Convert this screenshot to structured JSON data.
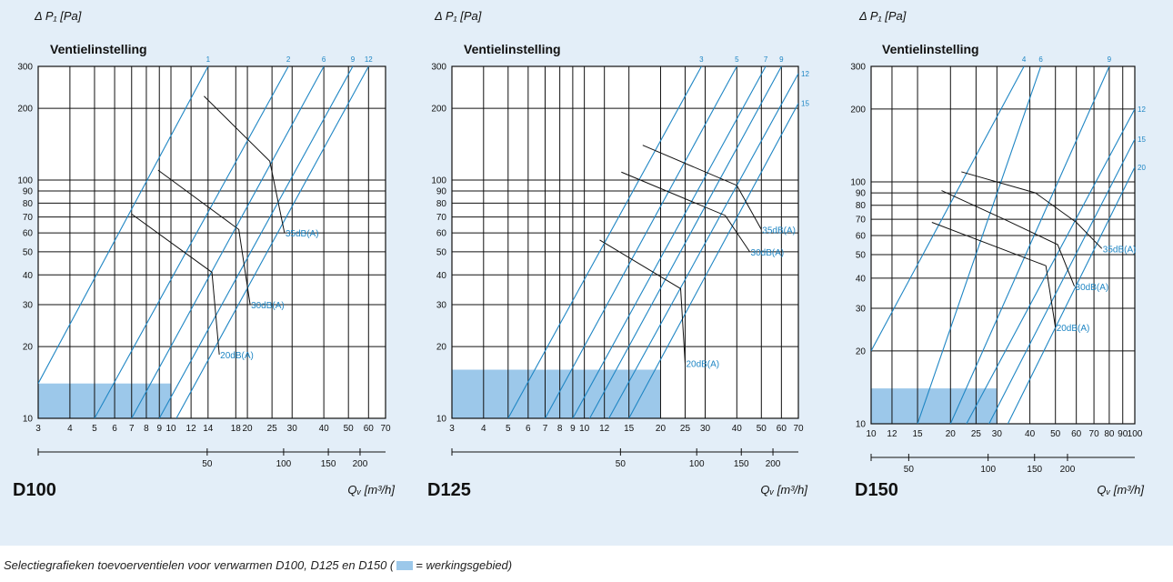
{
  "caption": {
    "text_before": "Selectiegrafieken toevoerventielen voor verwarmen D100, D125 en D150 (",
    "text_after": "= werkingsgebied)"
  },
  "colors": {
    "panel_background": "#e3eef8",
    "grid": "#111111",
    "setting_lines": "#1f86c4",
    "operating_area": "#9cc8ea",
    "noise_lines": "#111111",
    "noise_labels": "#1f86c4"
  },
  "chart_data": [
    {
      "type": "line",
      "title": "D100",
      "subtitle": "Ventielinstelling",
      "ylabel": "Δ P₁ [Pa]",
      "xlabel": "Qᵥ [m³/h]",
      "x_scale": "log",
      "y_scale": "log",
      "xlim": [
        3,
        70
      ],
      "ylim": [
        10,
        300
      ],
      "x_ticks": [
        3,
        4,
        5,
        6,
        7,
        8,
        9,
        10,
        12,
        14,
        18,
        20,
        25,
        30,
        40,
        50,
        60,
        70
      ],
      "y_ticks": [
        10,
        20,
        30,
        40,
        50,
        60,
        70,
        80,
        90,
        100,
        200,
        300
      ],
      "secondary_ticks": [
        50,
        100,
        150,
        200
      ],
      "operating_area": {
        "x": [
          3,
          10
        ],
        "y": [
          10,
          14
        ]
      },
      "setting_lines": [
        {
          "name": "1",
          "points": [
            [
              3,
              14
            ],
            [
              14,
              300
            ]
          ]
        },
        {
          "name": "2",
          "points": [
            [
              5,
              10
            ],
            [
              29,
              300
            ]
          ]
        },
        {
          "name": "6",
          "points": [
            [
              7,
              10
            ],
            [
              40,
              300
            ]
          ]
        },
        {
          "name": "9",
          "points": [
            [
              9,
              10
            ],
            [
              52,
              300
            ]
          ]
        },
        {
          "name": "12",
          "points": [
            [
              10.5,
              10
            ],
            [
              60,
              300
            ]
          ]
        }
      ],
      "noise_lines": [
        {
          "name": "35dB(A)",
          "points": [
            [
              13.5,
              225
            ],
            [
              24.5,
              120
            ],
            [
              28,
              60
            ]
          ]
        },
        {
          "name": "30dB(A)",
          "points": [
            [
              8.9,
              110
            ],
            [
              18.5,
              62
            ],
            [
              20.5,
              30
            ]
          ]
        },
        {
          "name": "20dB(A)",
          "points": [
            [
              7,
              72
            ],
            [
              14.5,
              41
            ],
            [
              15.5,
              18.5
            ]
          ]
        }
      ]
    },
    {
      "type": "line",
      "title": "D125",
      "subtitle": "Ventielinstelling",
      "ylabel": "Δ P₁ [Pa]",
      "xlabel": "Qᵥ [m³/h]",
      "x_scale": "log",
      "y_scale": "log",
      "xlim": [
        3,
        70
      ],
      "ylim": [
        10,
        300
      ],
      "x_ticks": [
        3,
        4,
        5,
        6,
        7,
        8,
        9,
        10,
        12,
        15,
        20,
        25,
        30,
        40,
        50,
        60,
        70
      ],
      "y_ticks": [
        10,
        20,
        30,
        40,
        50,
        60,
        70,
        80,
        90,
        100,
        200,
        300
      ],
      "secondary_ticks": [
        50,
        100,
        150,
        200
      ],
      "operating_area": {
        "x": [
          3,
          20
        ],
        "y": [
          10,
          16
        ]
      },
      "setting_lines": [
        {
          "name": "3",
          "points": [
            [
              5,
              10
            ],
            [
              29,
              300
            ]
          ]
        },
        {
          "name": "5",
          "points": [
            [
              7,
              10
            ],
            [
              40,
              300
            ]
          ]
        },
        {
          "name": "7",
          "points": [
            [
              9,
              10
            ],
            [
              52,
              300
            ]
          ]
        },
        {
          "name": "9",
          "points": [
            [
              10.5,
              10
            ],
            [
              60,
              300
            ]
          ]
        },
        {
          "name": "12",
          "points": [
            [
              12.5,
              10
            ],
            [
              70,
              280
            ]
          ]
        },
        {
          "name": "15",
          "points": [
            [
              15,
              10
            ],
            [
              70,
              210
            ]
          ]
        }
      ],
      "noise_lines": [
        {
          "name": "35dB(A)",
          "points": [
            [
              17,
              140
            ],
            [
              40,
              95
            ],
            [
              50,
              62
            ]
          ]
        },
        {
          "name": "30dB(A)",
          "points": [
            [
              14,
              108
            ],
            [
              36,
              71
            ],
            [
              45,
              50
            ]
          ]
        },
        {
          "name": "20dB(A)",
          "points": [
            [
              11.5,
              56
            ],
            [
              24,
              35
            ],
            [
              25,
              17
            ]
          ]
        }
      ]
    },
    {
      "type": "line",
      "title": "D150",
      "subtitle": "Ventielinstelling",
      "ylabel": "Δ P₁ [Pa]",
      "xlabel": "Qᵥ [m³/h]",
      "x_scale": "log",
      "y_scale": "log",
      "xlim": [
        10,
        100
      ],
      "ylim": [
        10,
        300
      ],
      "x_ticks": [
        10,
        12,
        15,
        20,
        25,
        30,
        40,
        50,
        60,
        70,
        80,
        90,
        100
      ],
      "y_ticks": [
        10,
        20,
        30,
        40,
        50,
        60,
        70,
        80,
        90,
        100,
        200,
        300
      ],
      "secondary_ticks": [
        50,
        100,
        150,
        200
      ],
      "operating_area": {
        "x": [
          10,
          30
        ],
        "y": [
          10,
          14
        ]
      },
      "setting_lines": [
        {
          "name": "4",
          "points": [
            [
              10,
              20
            ],
            [
              38,
              300
            ]
          ]
        },
        {
          "name": "6",
          "points": [
            [
              15,
              10
            ],
            [
              44,
              300
            ]
          ]
        },
        {
          "name": "9",
          "points": [
            [
              20,
              10
            ],
            [
              80,
              300
            ]
          ]
        },
        {
          "name": "12",
          "points": [
            [
              23,
              10
            ],
            [
              100,
              200
            ]
          ]
        },
        {
          "name": "15",
          "points": [
            [
              28,
              10
            ],
            [
              100,
              150
            ]
          ]
        },
        {
          "name": "20",
          "points": [
            [
              33,
              10
            ],
            [
              100,
              115
            ]
          ]
        }
      ],
      "noise_lines": [
        {
          "name": "35dB(A)",
          "points": [
            [
              22,
              110
            ],
            [
              42,
              90
            ],
            [
              60,
              68
            ],
            [
              75,
              53
            ]
          ]
        },
        {
          "name": "30dB(A)",
          "points": [
            [
              18.5,
              92
            ],
            [
              32,
              70
            ],
            [
              51,
              55
            ],
            [
              59,
              37
            ]
          ]
        },
        {
          "name": "20dB(A)",
          "points": [
            [
              17,
              68
            ],
            [
              46,
              45
            ],
            [
              50,
              25
            ]
          ]
        }
      ]
    }
  ]
}
